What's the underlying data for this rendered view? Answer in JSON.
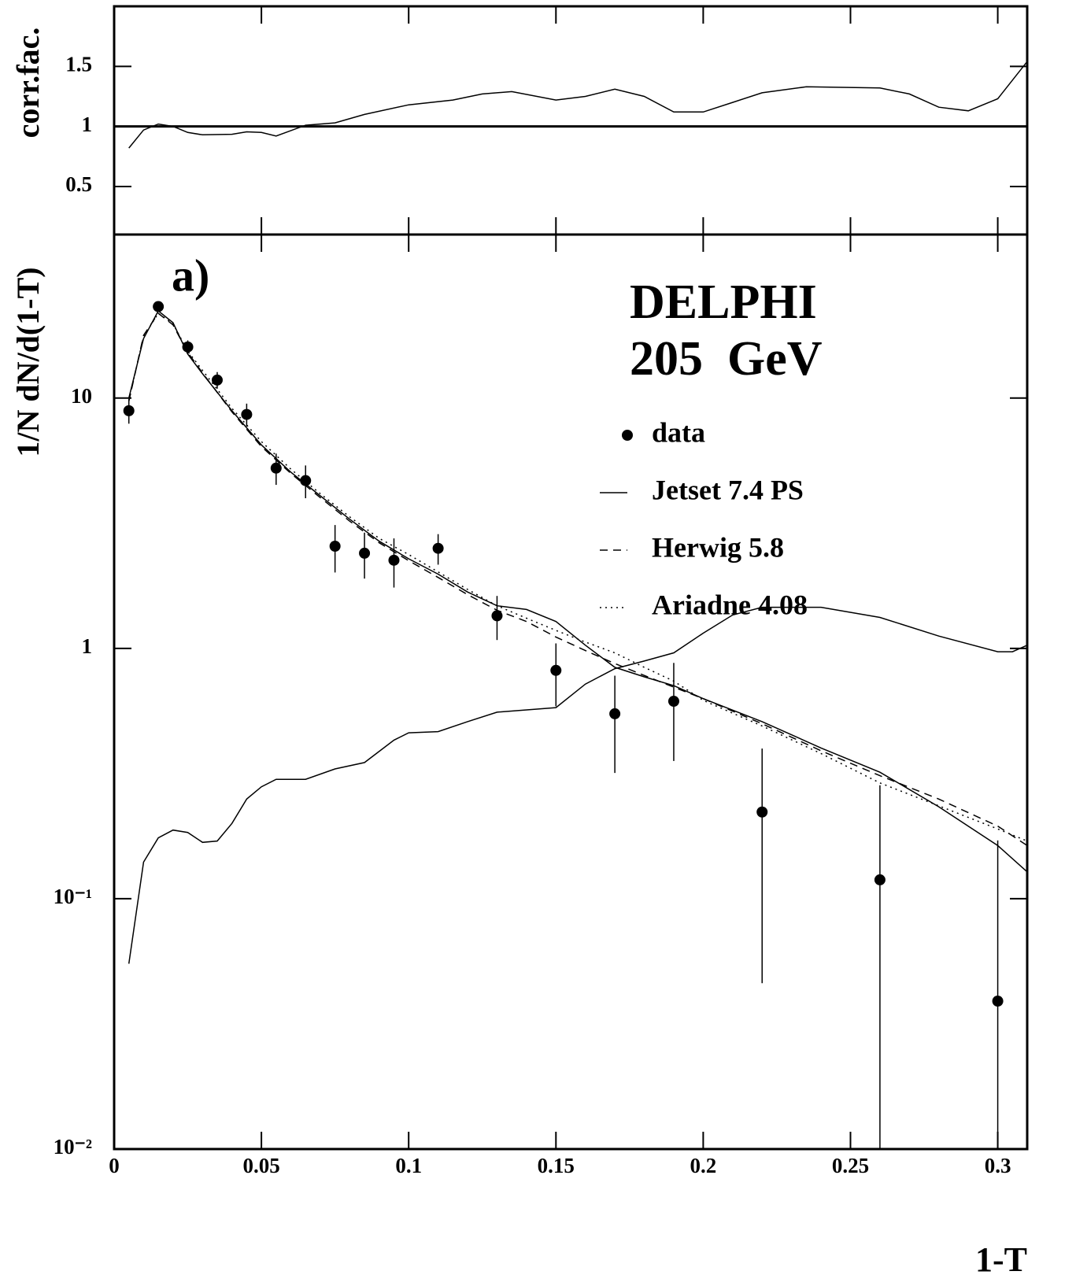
{
  "chart_data": [
    {
      "type": "line",
      "ylabel": "corr.fac.",
      "xlim": [
        0,
        0.31
      ],
      "xticks": [
        0,
        0.05,
        0.1,
        0.15,
        0.2,
        0.25,
        0.3
      ],
      "ylim": [
        0.1,
        2.0
      ],
      "yticks": [
        0.5,
        1,
        1.5
      ],
      "reference_line": 1,
      "series": [
        {
          "color": "#000000",
          "style": "solid",
          "x": [
            0.005,
            0.01,
            0.015,
            0.02,
            0.025,
            0.03,
            0.04,
            0.045,
            0.05,
            0.055,
            0.065,
            0.075,
            0.085,
            0.1,
            0.115,
            0.125,
            0.135,
            0.15,
            0.16,
            0.17,
            0.18,
            0.19,
            0.2,
            0.21,
            0.22,
            0.235,
            0.26,
            0.27,
            0.28,
            0.29,
            0.3,
            0.31
          ],
          "values": [
            0.82,
            0.97,
            1.02,
            1.0,
            0.95,
            0.93,
            0.935,
            0.955,
            0.95,
            0.92,
            1.01,
            1.03,
            1.1,
            1.18,
            1.22,
            1.27,
            1.29,
            1.22,
            1.25,
            1.31,
            1.25,
            1.12,
            1.12,
            1.2,
            1.28,
            1.33,
            1.32,
            1.27,
            1.16,
            1.13,
            1.23,
            1.54
          ]
        }
      ]
    },
    {
      "type": "line",
      "ylabel": "1/N dN/d(1-T)",
      "xlabel": "1-T",
      "log_y": true,
      "annotations": [
        "a)",
        "DELPHI",
        "205  GeV"
      ],
      "legend": "upper right",
      "xlim": [
        0,
        0.31
      ],
      "xticks": [
        0,
        0.05,
        0.1,
        0.15,
        0.2,
        0.25,
        0.3
      ],
      "ylim": [
        0.01,
        45
      ],
      "yticks": [
        {
          "value": 0.01,
          "label": "10⁻²"
        },
        {
          "value": 0.1,
          "label": "10⁻¹"
        },
        1,
        10
      ],
      "series": [
        {
          "name": "data",
          "type": "scatter",
          "color": "#000000",
          "x": [
            0.005,
            0.015,
            0.025,
            0.035,
            0.045,
            0.055,
            0.065,
            0.075,
            0.085,
            0.095,
            0.11,
            0.13,
            0.15,
            0.17,
            0.19,
            0.22,
            0.26,
            0.3
          ],
          "values": [
            8.9,
            23.2,
            16.0,
            11.8,
            8.6,
            5.25,
            4.68,
            2.56,
            2.4,
            2.25,
            2.51,
            1.35,
            0.817,
            0.548,
            0.615,
            0.222,
            0.119,
            0.039
          ],
          "errors": [
            1.0,
            1.0,
            1.0,
            0.9,
            0.9,
            0.75,
            0.7,
            0.55,
            0.5,
            0.5,
            0.35,
            0.27,
            0.23,
            0.23,
            0.26,
            0.176,
            0.165,
            0.132
          ]
        },
        {
          "name": "Jetset 7.4 PS",
          "color": "#000000",
          "style": "solid",
          "x": [
            0.005,
            0.01,
            0.015,
            0.02,
            0.025,
            0.03,
            0.04,
            0.05,
            0.06,
            0.07,
            0.08,
            0.09,
            0.1,
            0.11,
            0.12,
            0.13,
            0.14,
            0.15,
            0.16,
            0.17,
            0.18,
            0.19,
            0.2,
            0.22,
            0.24,
            0.26,
            0.28,
            0.3,
            0.31
          ],
          "values": [
            10.0,
            17.3,
            22.3,
            20.0,
            15.0,
            12.5,
            8.9,
            6.5,
            5.06,
            4.07,
            3.28,
            2.68,
            2.28,
            1.98,
            1.68,
            1.48,
            1.43,
            1.28,
            1.03,
            0.84,
            0.77,
            0.71,
            0.63,
            0.51,
            0.4,
            0.32,
            0.233,
            0.163,
            0.128
          ]
        },
        {
          "name": "Herwig 5.8",
          "color": "#000000",
          "style": "dashed",
          "x": [
            0.005,
            0.01,
            0.015,
            0.02,
            0.025,
            0.03,
            0.04,
            0.05,
            0.06,
            0.07,
            0.08,
            0.09,
            0.1,
            0.11,
            0.12,
            0.13,
            0.14,
            0.15,
            0.16,
            0.17,
            0.18,
            0.19,
            0.2,
            0.22,
            0.24,
            0.26,
            0.28,
            0.3,
            0.31
          ],
          "values": [
            9.7,
            17.8,
            21.8,
            19.6,
            15.2,
            12.6,
            8.8,
            6.4,
            5.0,
            4.0,
            3.22,
            2.64,
            2.24,
            1.92,
            1.64,
            1.42,
            1.28,
            1.11,
            0.98,
            0.87,
            0.78,
            0.7,
            0.63,
            0.5,
            0.39,
            0.31,
            0.25,
            0.195,
            0.163
          ]
        },
        {
          "name": "Ariadne 4.08",
          "color": "#000000",
          "style": "dotted",
          "x": [
            0.005,
            0.01,
            0.015,
            0.02,
            0.025,
            0.03,
            0.04,
            0.05,
            0.06,
            0.07,
            0.08,
            0.09,
            0.1,
            0.11,
            0.12,
            0.13,
            0.14,
            0.15,
            0.16,
            0.17,
            0.18,
            0.19,
            0.2,
            0.22,
            0.24,
            0.26,
            0.28,
            0.3,
            0.31
          ],
          "values": [
            9.8,
            17.6,
            21.8,
            19.8,
            15.4,
            12.9,
            9.1,
            6.7,
            5.2,
            4.15,
            3.35,
            2.75,
            2.37,
            2.02,
            1.72,
            1.48,
            1.32,
            1.18,
            1.06,
            0.96,
            0.84,
            0.74,
            0.62,
            0.49,
            0.38,
            0.29,
            0.235,
            0.19,
            0.17
          ]
        },
        {
          "color": "#000000",
          "style": "solid",
          "x": [
            0.005,
            0.01,
            0.015,
            0.02,
            0.025,
            0.03,
            0.035,
            0.04,
            0.045,
            0.05,
            0.055,
            0.065,
            0.075,
            0.085,
            0.095,
            0.1,
            0.11,
            0.12,
            0.13,
            0.15,
            0.16,
            0.17,
            0.18,
            0.19,
            0.2,
            0.21,
            0.22,
            0.24,
            0.26,
            0.28,
            0.3,
            0.305,
            0.31
          ],
          "values": [
            0.055,
            0.14,
            0.175,
            0.188,
            0.184,
            0.168,
            0.17,
            0.2,
            0.25,
            0.28,
            0.3,
            0.3,
            0.33,
            0.35,
            0.43,
            0.46,
            0.465,
            0.51,
            0.556,
            0.58,
            0.72,
            0.83,
            0.89,
            0.96,
            1.15,
            1.36,
            1.46,
            1.46,
            1.33,
            1.12,
            0.97,
            0.97,
            1.03
          ]
        }
      ]
    }
  ]
}
